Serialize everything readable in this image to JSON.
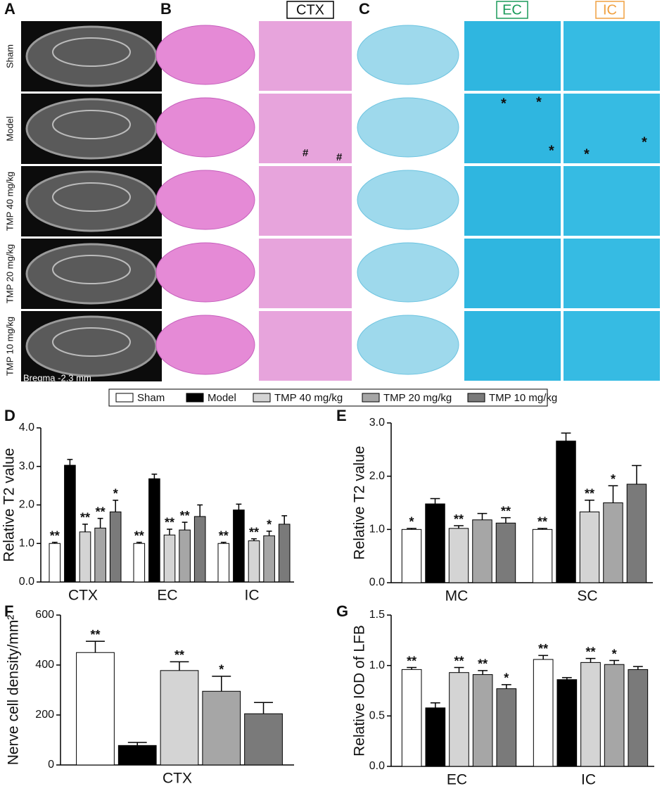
{
  "panel_labels": [
    "A",
    "B",
    "C",
    "D",
    "E",
    "F",
    "G"
  ],
  "rows": [
    "Sham",
    "Model",
    "TMP 40 mg/kg",
    "TMP 20 mg/kg",
    "TMP 10 mg/kg"
  ],
  "bregma": "Bregma -2.3 mm",
  "headers": {
    "ctx": "CTX",
    "ec": "EC",
    "ic": "IC"
  },
  "image_marks": {
    "hash": "#",
    "star": "*"
  },
  "legend": [
    {
      "name": "Sham",
      "color": "#ffffff"
    },
    {
      "name": "Model",
      "color": "#000000"
    },
    {
      "name": "TMP 40 mg/kg",
      "color": "#d4d4d4"
    },
    {
      "name": "TMP 20 mg/kg",
      "color": "#a6a6a6"
    },
    {
      "name": "TMP 10 mg/kg",
      "color": "#7a7a7a"
    }
  ],
  "chart_data": [
    {
      "type": "bar",
      "y_label": "Relative T2 value",
      "categories": [
        "CTX",
        "EC",
        "IC"
      ],
      "ylim": [
        0,
        4
      ],
      "yticks": [
        {
          "value": 0,
          "label": "0.0"
        },
        {
          "value": 1,
          "label": "1.0"
        },
        {
          "value": 2,
          "label": "2.0"
        },
        {
          "value": 3,
          "label": "3.0"
        },
        {
          "value": 4,
          "label": "4.0"
        }
      ],
      "series": [
        {
          "values": [
            1.0,
            1.0,
            1.0
          ],
          "errors": [
            0.03,
            0.03,
            0.03
          ],
          "annotations": [
            "**",
            "**",
            "**"
          ]
        },
        {
          "values": [
            3.03,
            2.68,
            1.87
          ],
          "errors": [
            0.15,
            0.12,
            0.15
          ],
          "annotations": [
            null,
            null,
            null
          ]
        },
        {
          "values": [
            1.3,
            1.22,
            1.07
          ],
          "errors": [
            0.2,
            0.15,
            0.05
          ],
          "annotations": [
            "**",
            "**",
            "**"
          ]
        },
        {
          "values": [
            1.4,
            1.35,
            1.2
          ],
          "errors": [
            0.25,
            0.2,
            0.12
          ],
          "annotations": [
            "**",
            "**",
            "*"
          ]
        },
        {
          "values": [
            1.82,
            1.7,
            1.5
          ],
          "errors": [
            0.3,
            0.3,
            0.22
          ],
          "annotations": [
            "*",
            null,
            null
          ]
        }
      ]
    },
    {
      "type": "bar",
      "y_label": "Relative T2 value",
      "categories": [
        "MC",
        "SC"
      ],
      "ylim": [
        0,
        3
      ],
      "yticks": [
        {
          "value": 0,
          "label": "0.0"
        },
        {
          "value": 1,
          "label": "1.0"
        },
        {
          "value": 2,
          "label": "2.0"
        },
        {
          "value": 3,
          "label": "3.0"
        }
      ],
      "series": [
        {
          "values": [
            1.0,
            1.0
          ],
          "errors": [
            0.02,
            0.02
          ],
          "annotations": [
            "*",
            "**"
          ]
        },
        {
          "values": [
            1.48,
            2.66
          ],
          "errors": [
            0.1,
            0.15
          ],
          "annotations": [
            null,
            null
          ]
        },
        {
          "values": [
            1.02,
            1.33
          ],
          "errors": [
            0.05,
            0.22
          ],
          "annotations": [
            "**",
            "**"
          ]
        },
        {
          "values": [
            1.18,
            1.5
          ],
          "errors": [
            0.12,
            0.32
          ],
          "annotations": [
            null,
            "*"
          ]
        },
        {
          "values": [
            1.12,
            1.85
          ],
          "errors": [
            0.1,
            0.35
          ],
          "annotations": [
            "**",
            null
          ]
        }
      ]
    },
    {
      "type": "bar",
      "y_label": "Nerve cell density/mm²",
      "categories": [
        "CTX"
      ],
      "ylim": [
        0,
        600
      ],
      "yticks": [
        0,
        200,
        400,
        600
      ],
      "series": [
        {
          "values": [
            450
          ],
          "errors": [
            45
          ],
          "annotations": [
            "**"
          ]
        },
        {
          "values": [
            78
          ],
          "errors": [
            12
          ],
          "annotations": [
            null
          ]
        },
        {
          "values": [
            378
          ],
          "errors": [
            35
          ],
          "annotations": [
            "**"
          ]
        },
        {
          "values": [
            295
          ],
          "errors": [
            60
          ],
          "annotations": [
            "*"
          ]
        },
        {
          "values": [
            205
          ],
          "errors": [
            45
          ],
          "annotations": [
            null
          ]
        }
      ]
    },
    {
      "type": "bar",
      "y_label": "Relative IOD of LFB",
      "categories": [
        "EC",
        "IC"
      ],
      "ylim": [
        0,
        1.5
      ],
      "yticks": [
        {
          "value": 0,
          "label": "0.0"
        },
        {
          "value": 0.5,
          "label": "0.5"
        },
        {
          "value": 1,
          "label": "1.0"
        },
        {
          "value": 1.5,
          "label": "1.5"
        }
      ],
      "series": [
        {
          "values": [
            0.96,
            1.06
          ],
          "errors": [
            0.02,
            0.04
          ],
          "annotations": [
            "**",
            "**"
          ]
        },
        {
          "values": [
            0.58,
            0.86
          ],
          "errors": [
            0.05,
            0.02
          ],
          "annotations": [
            null,
            null
          ]
        },
        {
          "values": [
            0.93,
            1.03
          ],
          "errors": [
            0.05,
            0.04
          ],
          "annotations": [
            "**",
            "**"
          ]
        },
        {
          "values": [
            0.91,
            1.01
          ],
          "errors": [
            0.04,
            0.04
          ],
          "annotations": [
            "**",
            "*"
          ]
        },
        {
          "values": [
            0.77,
            0.96
          ],
          "errors": [
            0.04,
            0.03
          ],
          "annotations": [
            "*",
            null
          ]
        }
      ]
    }
  ]
}
